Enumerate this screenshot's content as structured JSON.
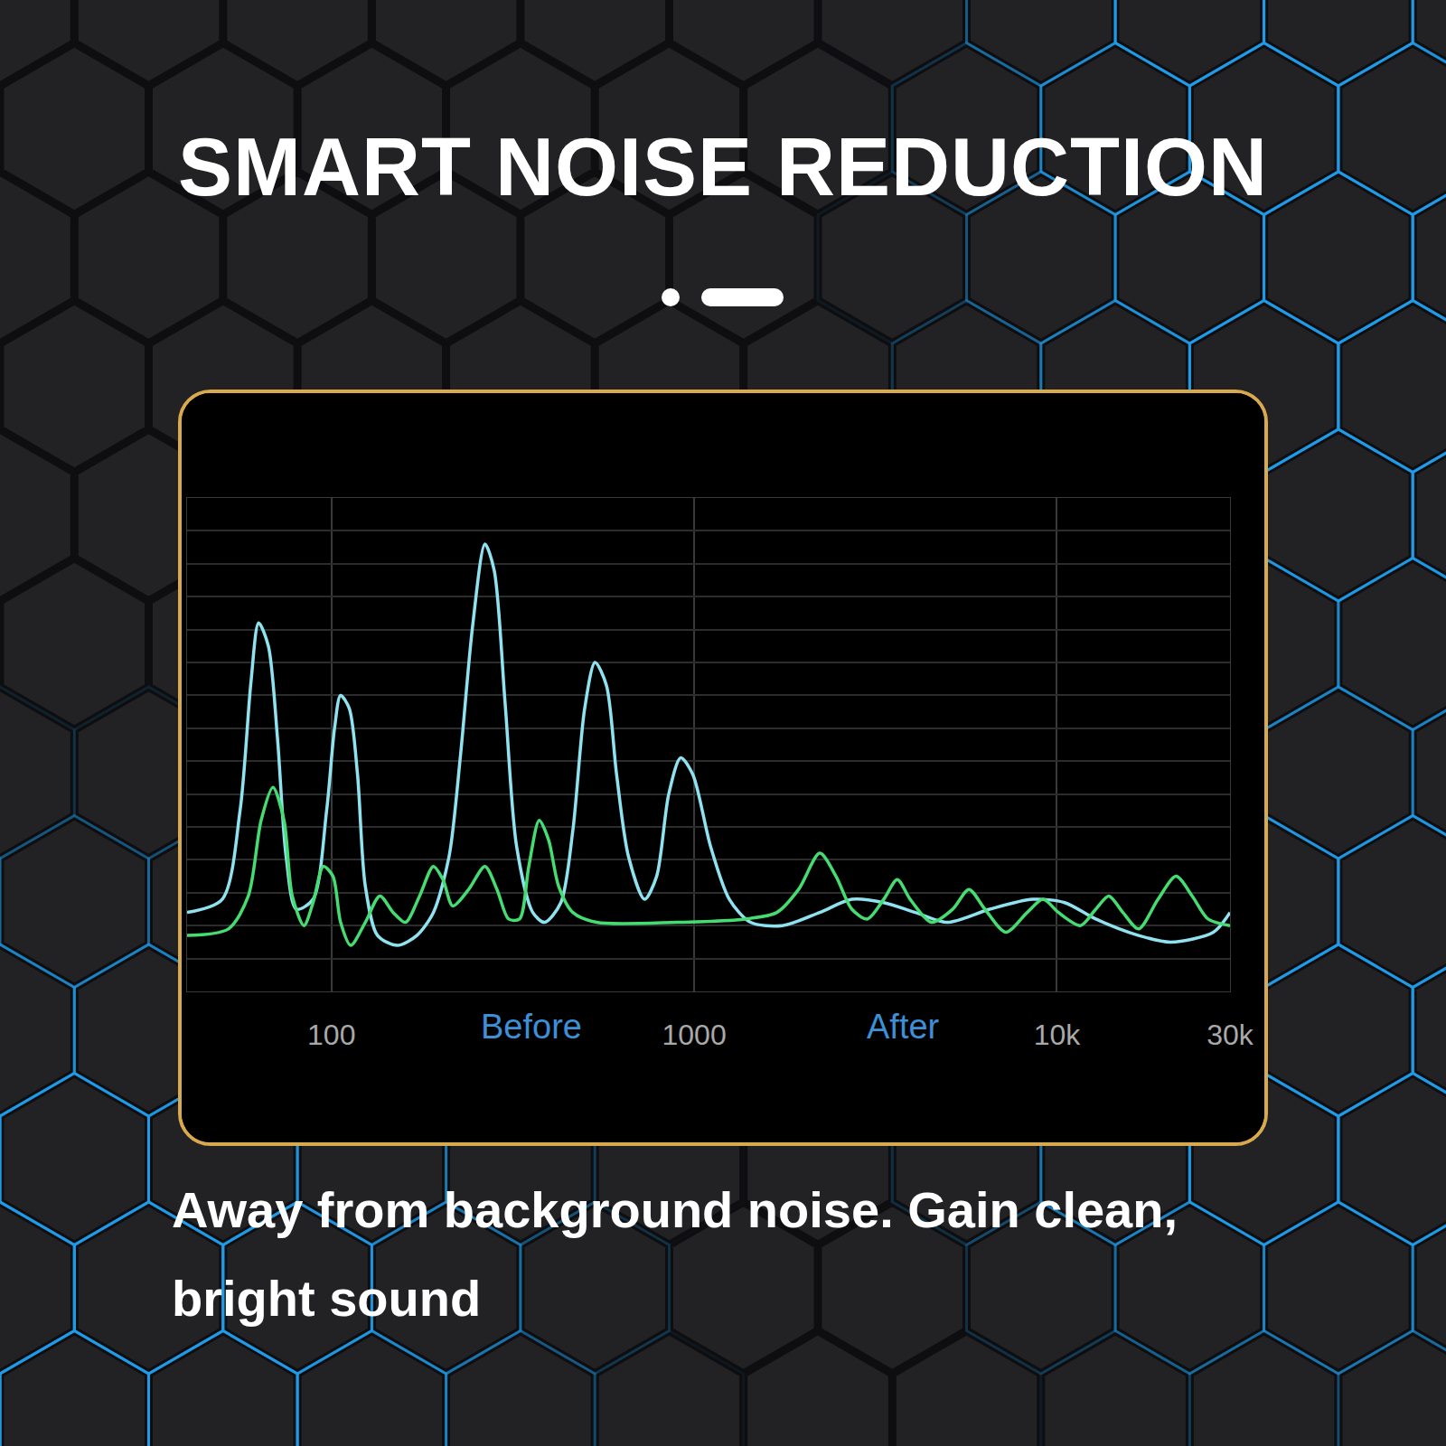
{
  "chart_data": {
    "type": "line",
    "title": "SMART NOISE REDUCTION",
    "subtitle": "Away from background noise. Gain clean, bright sound",
    "log": "x",
    "xlim": [
      40,
      30000
    ],
    "xticks": [
      100,
      1000,
      {
        "value": 10000,
        "label": "10k"
      },
      {
        "value": 30000,
        "label": "30k"
      }
    ],
    "ylim": [
      0,
      15
    ],
    "yticks": [
      0,
      1,
      2,
      3,
      4,
      5,
      6,
      7,
      8,
      9,
      10,
      11,
      12,
      13,
      14,
      15
    ],
    "grid": true,
    "tick_labels": "x",
    "series": [
      {
        "name": "Before",
        "color": "#8fe3f0",
        "x": [
          40,
          50,
          56,
          60,
          63,
          67,
          71,
          75,
          80,
          89,
          97,
          102,
          106,
          112,
          118,
          124,
          134,
          152,
          172,
          191,
          211,
          227,
          245,
          265,
          281,
          301,
          324,
          359,
          387,
          429,
          463,
          499,
          533,
          573,
          611,
          659,
          730,
          788,
          851,
          918,
          991,
          1110,
          1250,
          1430,
          1750,
          2220,
          2720,
          3330,
          4070,
          4990,
          6530,
          8570,
          10500,
          12800,
          16800,
          20600,
          27000,
          30000
        ],
        "values": [
          2.4,
          2.8,
          5.5,
          9.4,
          11.2,
          10.5,
          7.7,
          4.1,
          2.5,
          2.8,
          5.5,
          8.0,
          9.0,
          8.6,
          6.6,
          3.2,
          1.7,
          1.4,
          1.7,
          2.4,
          4.1,
          7.2,
          11.1,
          13.6,
          12.8,
          8.8,
          4.4,
          2.4,
          2.1,
          2.7,
          4.9,
          8.6,
          10.0,
          9.3,
          6.6,
          4.1,
          2.8,
          3.5,
          6.0,
          7.1,
          6.6,
          4.4,
          2.8,
          2.1,
          2.0,
          2.4,
          2.8,
          2.7,
          2.4,
          2.1,
          2.5,
          2.8,
          2.7,
          2.2,
          1.7,
          1.5,
          1.8,
          2.4
        ]
      },
      {
        "name": "After",
        "color": "#45dc72",
        "x": [
          40,
          52,
          59,
          64,
          69,
          74,
          78,
          84,
          89,
          95,
          101,
          106,
          113,
          124,
          136,
          148,
          160,
          175,
          191,
          203,
          216,
          239,
          265,
          286,
          308,
          330,
          350,
          374,
          397,
          423,
          463,
          538,
          895,
          1380,
          1690,
          1940,
          2220,
          2460,
          2720,
          3000,
          3330,
          3630,
          3940,
          4510,
          5160,
          5720,
          6330,
          7230,
          8280,
          9160,
          10100,
          11600,
          12800,
          13900,
          15200,
          16800,
          19000,
          21300,
          23600,
          26100,
          30000
        ],
        "values": [
          1.7,
          1.9,
          2.9,
          5.2,
          6.2,
          5.2,
          2.9,
          2.0,
          2.7,
          3.8,
          3.5,
          2.1,
          1.4,
          2.1,
          2.9,
          2.4,
          2.1,
          2.9,
          3.8,
          3.4,
          2.6,
          3.1,
          3.8,
          3.1,
          2.2,
          2.2,
          3.8,
          5.2,
          4.6,
          3.2,
          2.4,
          2.1,
          2.1,
          2.2,
          2.4,
          3.1,
          4.2,
          3.5,
          2.5,
          2.2,
          2.8,
          3.4,
          2.8,
          2.1,
          2.5,
          3.1,
          2.5,
          1.8,
          2.4,
          2.8,
          2.4,
          2.0,
          2.5,
          2.9,
          2.4,
          1.9,
          2.8,
          3.5,
          2.9,
          2.2,
          2.0
        ]
      }
    ]
  }
}
